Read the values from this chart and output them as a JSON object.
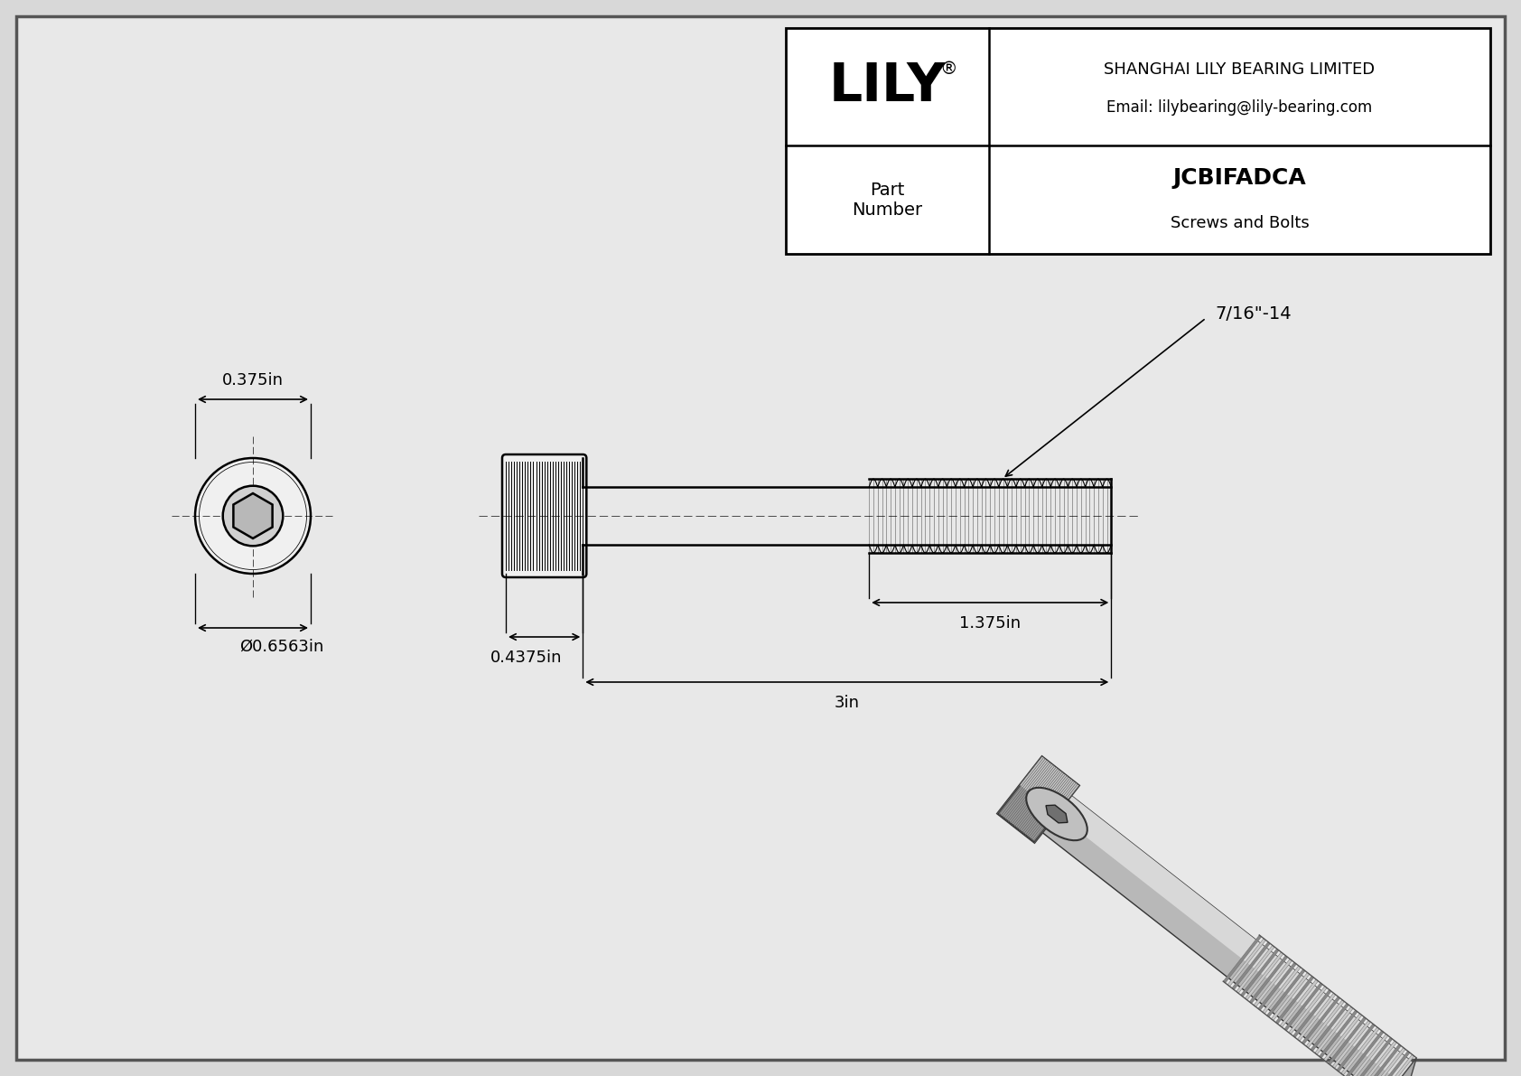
{
  "bg_color": "#d8d8d8",
  "inner_bg": "#e8e8e8",
  "line_color": "#000000",
  "title": "JCBIFADCA",
  "subtitle": "Screws and Bolts",
  "company": "SHANGHAI LILY BEARING LIMITED",
  "email": "Email: lilybearing@lily-bearing.com",
  "part_label": "Part\nNumber",
  "dim_head_diameter": "Ø0.6563in",
  "dim_head_length": "0.375in",
  "dim_shank_length": "0.4375in",
  "dim_total_length": "3in",
  "dim_thread_length": "1.375in",
  "dim_thread_label": "7/16\"-14"
}
